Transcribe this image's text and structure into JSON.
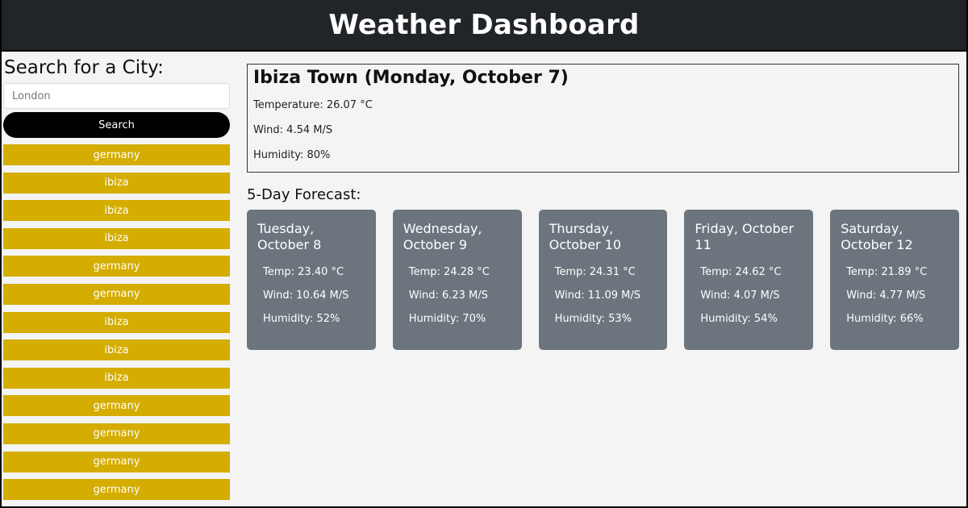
{
  "header": {
    "title": "Weather Dashboard"
  },
  "search": {
    "heading": "Search for a City:",
    "value": "London",
    "button_label": "Search"
  },
  "history": [
    "germany",
    "ibiza",
    "ibiza",
    "ibiza",
    "germany",
    "germany",
    "ibiza",
    "ibiza",
    "ibiza",
    "germany",
    "germany",
    "germany",
    "germany"
  ],
  "current": {
    "title": "Ibiza Town (Monday, October 7)",
    "temperature": "Temperature: 26.07 °C",
    "wind": "Wind: 4.54 M/S",
    "humidity": "Humidity: 80%"
  },
  "forecast": {
    "title": "5-Day Forecast:",
    "days": [
      {
        "date": "Tuesday, October 8",
        "temp": "Temp: 23.40 °C",
        "wind": "Wind: 10.64 M/S",
        "humidity": "Humidity: 52%"
      },
      {
        "date": "Wednesday, October 9",
        "temp": "Temp: 24.28 °C",
        "wind": "Wind: 6.23 M/S",
        "humidity": "Humidity: 70%"
      },
      {
        "date": "Thursday, October 10",
        "temp": "Temp: 24.31 °C",
        "wind": "Wind: 11.09 M/S",
        "humidity": "Humidity: 53%"
      },
      {
        "date": "Friday, October 11",
        "temp": "Temp: 24.62 °C",
        "wind": "Wind: 4.07 M/S",
        "humidity": "Humidity: 54%"
      },
      {
        "date": "Saturday, October 12",
        "temp": "Temp: 21.89 °C",
        "wind": "Wind: 4.77 M/S",
        "humidity": "Humidity: 66%"
      }
    ]
  },
  "colors": {
    "header": "#212529",
    "history": "#d4ad00",
    "card": "#6c757d"
  }
}
